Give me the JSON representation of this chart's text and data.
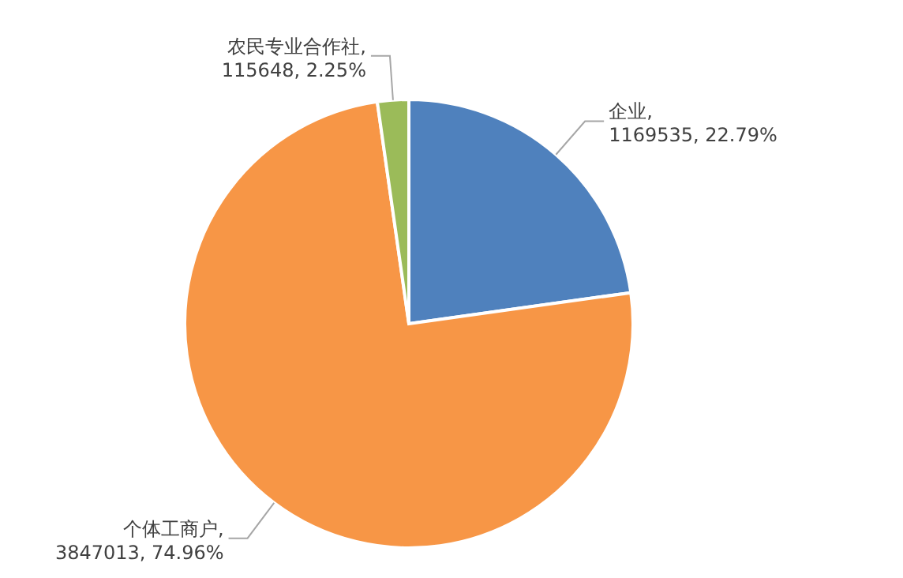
{
  "chart_data": {
    "type": "pie",
    "categories": [
      "企业",
      "个体工商户",
      "农民专业合作社"
    ],
    "values": [
      1169535,
      3847013,
      115648
    ],
    "colors": [
      "#4f81bd",
      "#f79646",
      "#9bbb59"
    ],
    "value_labels": [
      ", 1169535, 22.79%",
      ", 3847013, 74.96%",
      ", 115648, 2.25%"
    ],
    "legend": false
  }
}
